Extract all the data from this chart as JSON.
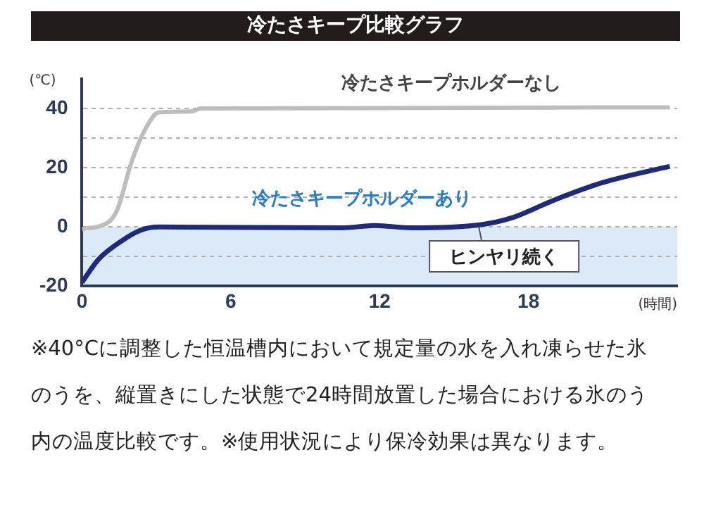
{
  "chart_data": {
    "type": "line",
    "title": "冷たさキープ比較グラフ",
    "xlabel": "(時間)",
    "ylabel": "(℃)",
    "xlim": [
      0,
      24
    ],
    "xticks": [
      0,
      6,
      12,
      18
    ],
    "ylim": [
      -20,
      50
    ],
    "yticks": [
      -20,
      {
        "value": -10,
        "label": null
      },
      0,
      {
        "value": 10,
        "label": null
      },
      20,
      {
        "value": 30,
        "label": null
      },
      40
    ],
    "grid": "y",
    "legend": false,
    "marker": "none",
    "line_style": "solid",
    "bands": [
      {
        "axis": "y",
        "from": -20,
        "to": 0,
        "color": "#dce9f6"
      }
    ],
    "series": [
      {
        "name": "冷たさキープホルダーなし",
        "color": "#bdbdbd",
        "x": [
          0,
          0.1,
          0.6,
          1.4,
          2,
          2.55,
          3.1,
          4.4,
          4.8,
          23.7
        ],
        "values": [
          -1,
          -0.5,
          0,
          5.4,
          22,
          33,
          38.7,
          39,
          40,
          40.4
        ]
      },
      {
        "name": "冷たさキープホルダーあり",
        "color": "#1f2a7a",
        "x": [
          0,
          0.66,
          1.6,
          2.36,
          3.1,
          10.5,
          11.8,
          13.3,
          16.1,
          17.3,
          19.1,
          21,
          23.7
        ],
        "values": [
          -18.7,
          -11,
          -4.7,
          -1.1,
          0,
          -0.3,
          0.5,
          -0.3,
          0.8,
          3,
          9.3,
          15,
          20.5
        ]
      }
    ],
    "annotations": [
      {
        "text": "ヒンヤリ続く",
        "x": 16,
        "y": 1
      },
      "※40°Cに調整した恒温槽内において規定量の水を入れ凍らせた氷のうを、縦置きにした状態で24時間放置した場合における氷のう内の温度比較です。※使用状況により保冷効果は異なります。"
    ]
  }
}
